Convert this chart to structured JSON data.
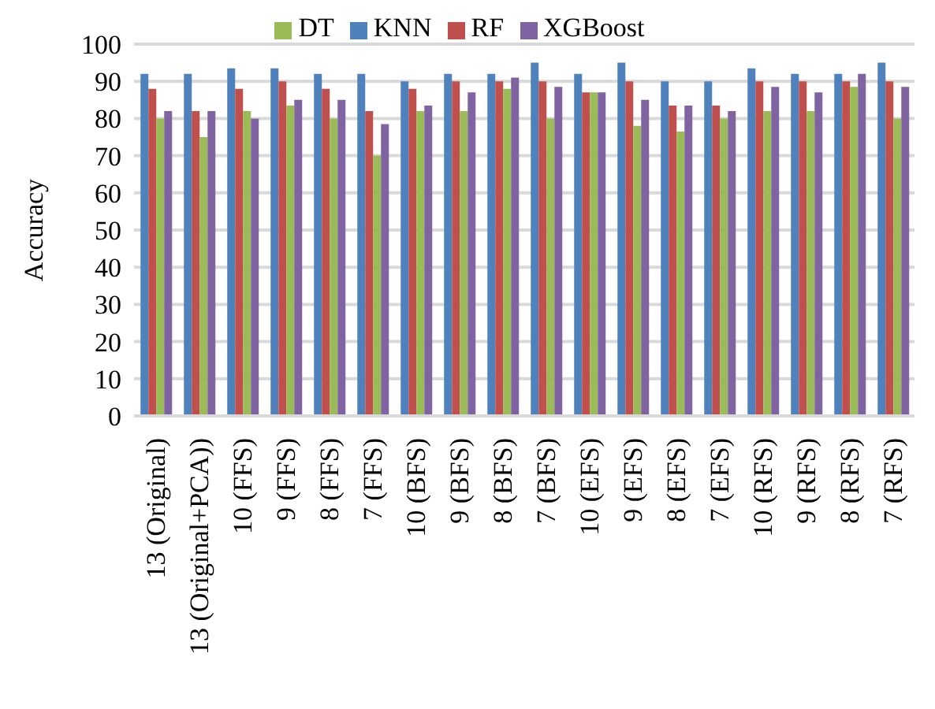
{
  "chart_data": {
    "type": "bar",
    "ylabel": "Accuracy",
    "categories": [
      "13 (Original)",
      "13 (Original+PCA))",
      "10 (FFS)",
      "9 (FFS)",
      "8 (FFS)",
      "7 (FFS)",
      "10 (BFS)",
      "9 (BFS)",
      "8 (BFS)",
      "7 (BFS)",
      "10 (EFS)",
      "9 (EFS)",
      "8 (EFS)",
      "7 (EFS)",
      "10 (RFS)",
      "9 (RFS)",
      "8 (RFS)",
      "7 (RFS)"
    ],
    "series": [
      {
        "name": "KNN",
        "color": "#4f81bd",
        "values": [
          92,
          92,
          93.5,
          93.5,
          92,
          92,
          90,
          92,
          92,
          95,
          92,
          95,
          90,
          90,
          93.5,
          92,
          92,
          95
        ]
      },
      {
        "name": "RF",
        "color": "#c0504d",
        "values": [
          88,
          82,
          88,
          90,
          88,
          82,
          88,
          90,
          90,
          90,
          87,
          90,
          83.5,
          83.5,
          90,
          90,
          90,
          90
        ]
      },
      {
        "name": "DT",
        "color": "#9bbb59",
        "values": [
          80,
          75,
          82,
          83.5,
          80,
          70,
          82,
          82,
          88,
          80,
          87,
          78,
          76.5,
          80,
          82,
          82,
          88.5,
          80
        ]
      },
      {
        "name": "XGBoost",
        "color": "#8064a2",
        "values": [
          82,
          82,
          80,
          85,
          85,
          78.5,
          83.5,
          87,
          91,
          88.5,
          87,
          85,
          83.5,
          82,
          88.5,
          87,
          92,
          88.5
        ]
      }
    ],
    "ylim": [
      0,
      100
    ],
    "yticks": [
      0,
      10,
      20,
      30,
      40,
      50,
      60,
      70,
      80,
      90,
      100
    ],
    "grid": "y",
    "legend": "top"
  }
}
